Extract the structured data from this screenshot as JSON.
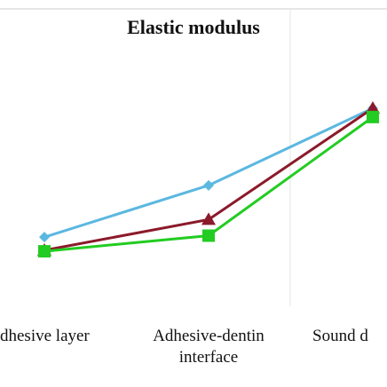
{
  "chart_data": {
    "type": "line",
    "title": "Elastic modulus",
    "categories": [
      "dhesive layer",
      "Adhesive-dentin interface",
      "Sound d"
    ],
    "ylim": [
      0,
      5
    ],
    "series": [
      {
        "color": "#5bb8e0",
        "marker": "diamond",
        "values": [
          1.47,
          2.53,
          4.11
        ]
      },
      {
        "color": "#8b1a2a",
        "marker": "triangle",
        "values": [
          1.2,
          1.83,
          4.11
        ]
      },
      {
        "color": "#22cc22",
        "marker": "square",
        "values": [
          1.18,
          1.5,
          3.93
        ]
      }
    ]
  }
}
